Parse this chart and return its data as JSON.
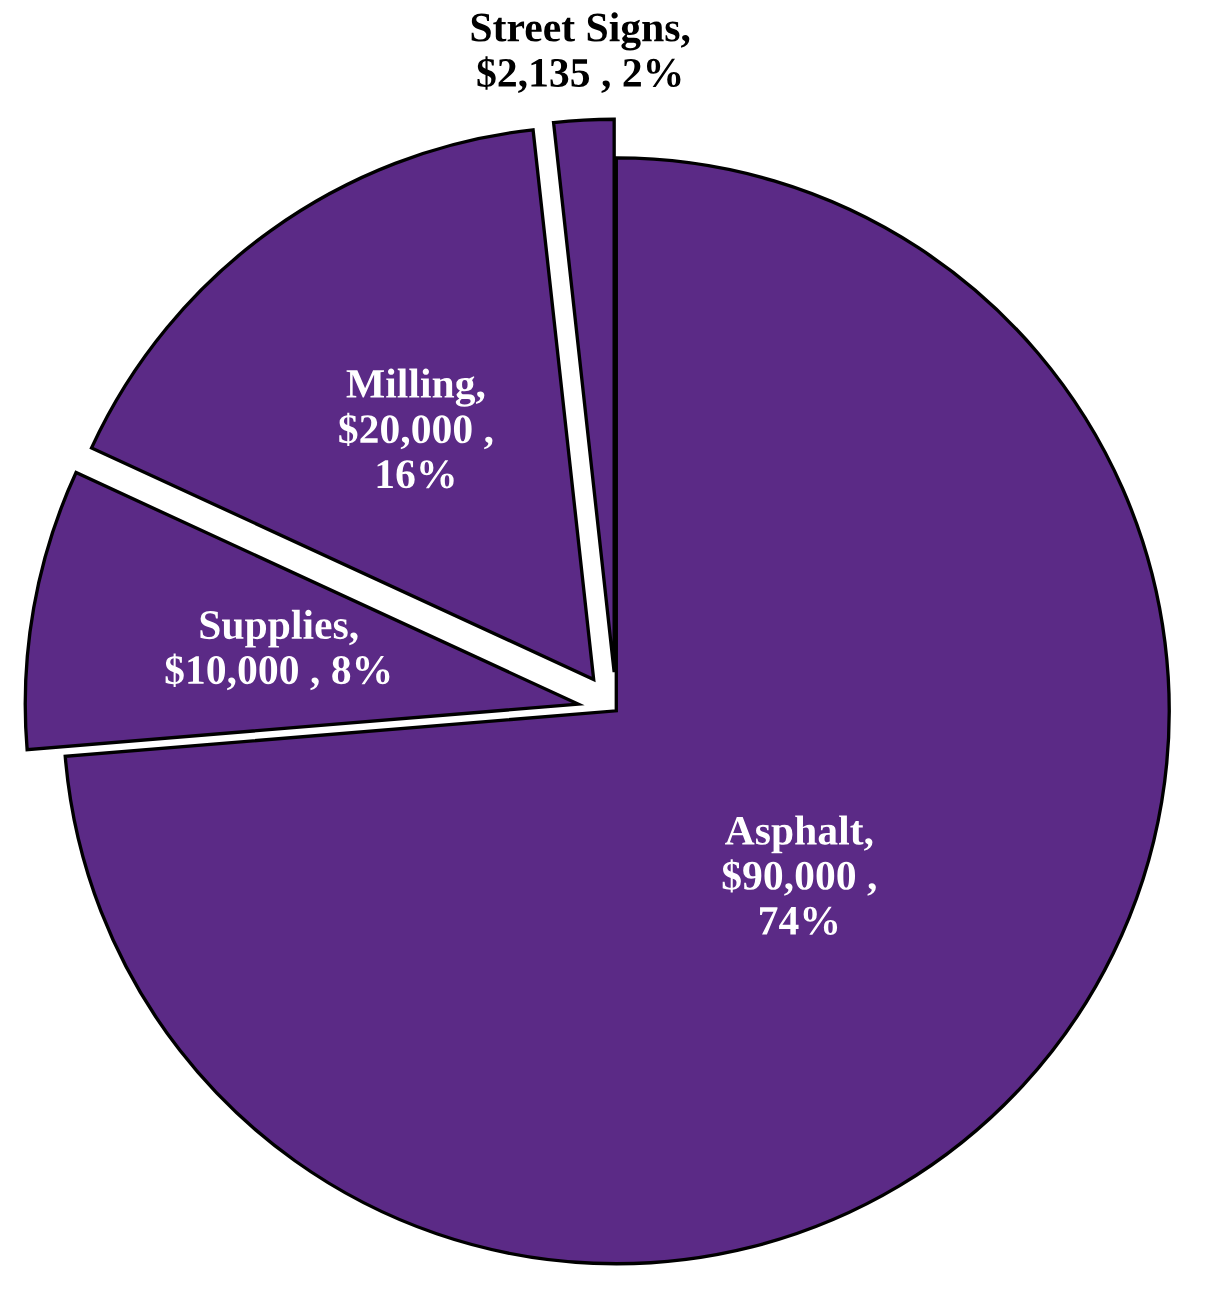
{
  "chart_data": {
    "type": "pie",
    "categories": [
      "Asphalt",
      "Supplies",
      "Milling",
      "Street Signs"
    ],
    "values": [
      90000,
      10000,
      20000,
      2135
    ],
    "value_labels": [
      ",\n$90,000 ,\n74%",
      ",\n$10,000 , 8%",
      ",\n$20,000 ,\n16%",
      ",\n$2,135 , 2%"
    ],
    "colors": [
      "#5b2a86",
      "#5b2a86",
      "#5b2a86",
      "#5b2a86"
    ],
    "legend": false
  }
}
